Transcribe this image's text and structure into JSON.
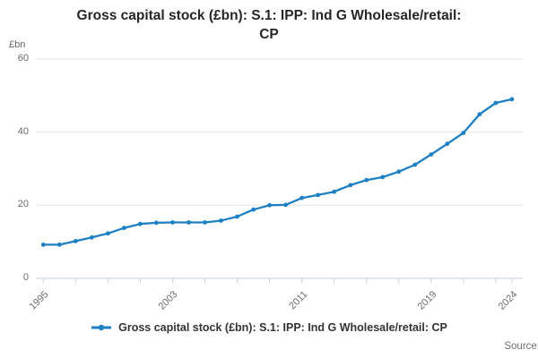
{
  "title": {
    "lines": [
      "Gross capital stock (£bn): S.1: IPP: Ind G Wholesale/retail:",
      "CP"
    ],
    "full": "Gross capital stock (£bn): S.1: IPP: Ind G Wholesale/retail: CP"
  },
  "y_axis": {
    "unit": "£bn",
    "ticks": [
      0,
      20,
      40,
      60
    ],
    "min": 0,
    "max": 60
  },
  "x_axis": {
    "labeled_ticks": [
      1995,
      2003,
      2011,
      2019,
      2024
    ],
    "tick_interval_years": 2,
    "first_year": 1995,
    "last_year": 2024
  },
  "chart_data": {
    "type": "line",
    "title": "Gross capital stock (£bn): S.1: IPP: Ind G Wholesale/retail: CP",
    "xlabel": "",
    "ylabel": "£bn",
    "ylim": [
      0,
      60
    ],
    "xlim": [
      1995,
      2024
    ],
    "grid": "horizontal",
    "legend_position": "bottom-center",
    "x": [
      1995,
      1996,
      1997,
      1998,
      1999,
      2000,
      2001,
      2002,
      2003,
      2004,
      2005,
      2006,
      2007,
      2008,
      2009,
      2010,
      2011,
      2012,
      2013,
      2014,
      2015,
      2016,
      2017,
      2018,
      2019,
      2020,
      2021,
      2022,
      2023,
      2024
    ],
    "series": [
      {
        "name": "Gross capital stock (£bn): S.1: IPP: Ind G Wholesale/retail: CP",
        "color": "#1d7fc4",
        "values": [
          9.2,
          9.2,
          10.2,
          11.2,
          12.3,
          13.8,
          14.9,
          15.2,
          15.3,
          15.3,
          15.3,
          15.8,
          16.9,
          18.8,
          20.0,
          20.1,
          22.0,
          22.8,
          23.7,
          25.5,
          26.9,
          27.7,
          29.2,
          31.1,
          33.9,
          36.8,
          39.8,
          44.9,
          48.0,
          49.0
        ]
      }
    ]
  },
  "legend": {
    "label": "Gross capital stock (£bn): S.1: IPP: Ind G Wholesale/retail: CP"
  },
  "source_label": "Source:",
  "colors": {
    "series": "#1d7fc4",
    "gridline": "#e4e4e4",
    "axis": "#c6d1de",
    "text_muted": "#6b6b6b"
  }
}
